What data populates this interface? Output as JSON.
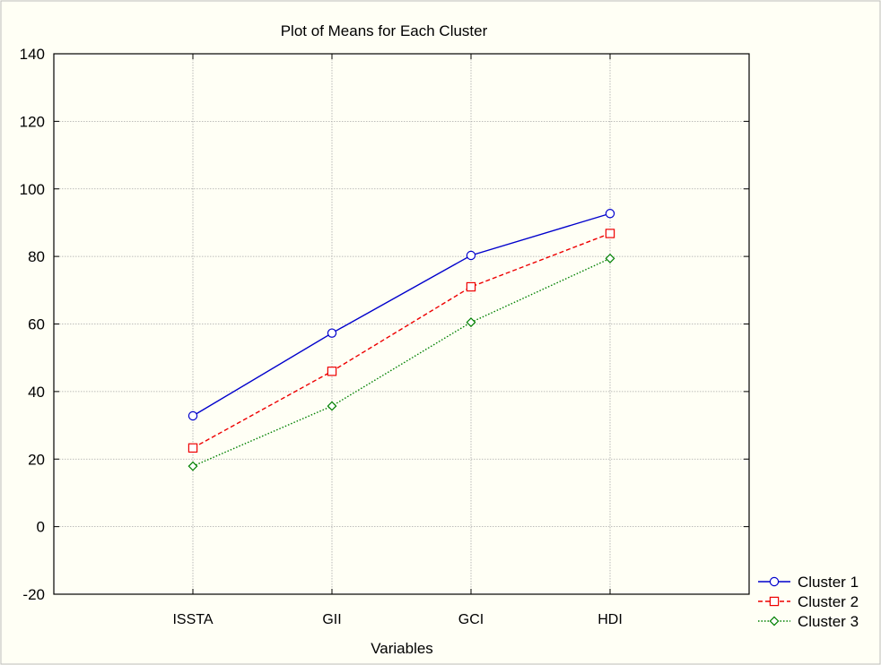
{
  "chart_data": {
    "type": "line",
    "title": "Plot of Means for Each Cluster",
    "xlabel": "Variables",
    "ylabel": "",
    "categories": [
      "ISSTA",
      "GII",
      "GCI",
      "HDI"
    ],
    "ylim": [
      -20,
      140
    ],
    "yticks": [
      -20,
      0,
      20,
      40,
      60,
      80,
      100,
      120,
      140
    ],
    "grid": true,
    "legend_position": "bottom-right",
    "series": [
      {
        "name": "Cluster  1",
        "values": [
          32.8,
          57.3,
          80.3,
          92.7
        ],
        "color": "#0000CC",
        "marker": "circle",
        "dash": "solid"
      },
      {
        "name": "Cluster  2",
        "values": [
          23.3,
          46.0,
          71.0,
          86.8
        ],
        "color": "#EE0000",
        "marker": "square",
        "dash": "dashed"
      },
      {
        "name": "Cluster  3",
        "values": [
          17.9,
          35.7,
          60.5,
          79.4
        ],
        "color": "#008000",
        "marker": "diamond",
        "dash": "dotted"
      }
    ]
  }
}
